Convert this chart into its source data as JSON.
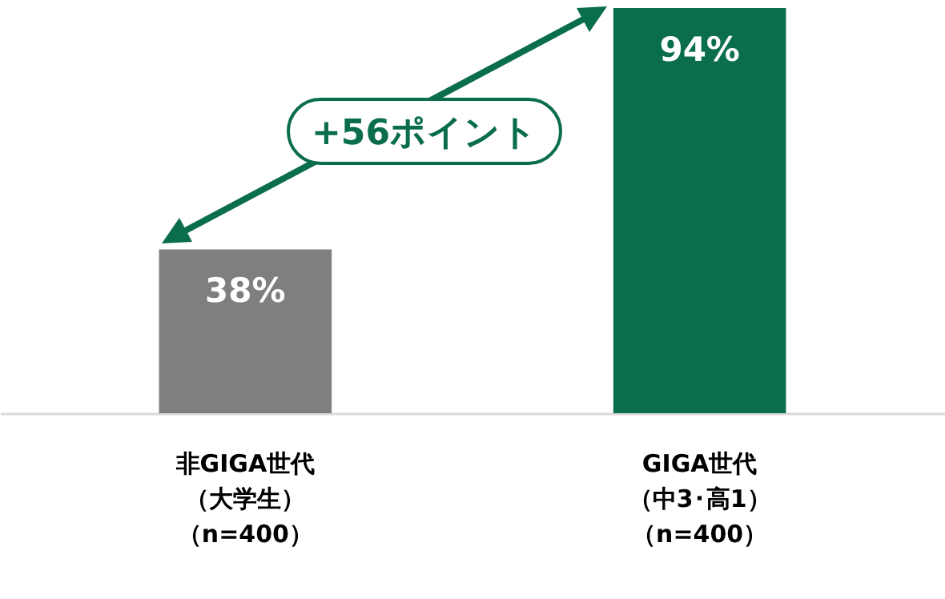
{
  "chart_data": {
    "type": "bar",
    "categories": [
      "非GIGA世代（大学生）（n=400）",
      "GIGA世代（中3･高1）（n=400）"
    ],
    "values": [
      38,
      94
    ],
    "colors": [
      "#7f7f7f",
      "#0b6e4a"
    ],
    "value_labels": [
      "38%",
      "94%"
    ],
    "annotations": [
      "+56ポイント"
    ]
  }
}
